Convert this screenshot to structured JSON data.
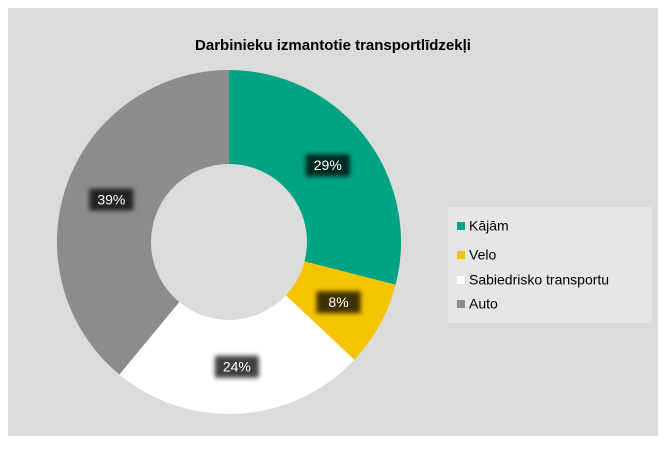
{
  "chart_data": {
    "type": "donut",
    "title": "Darbinieku izmantotie transportlīdzekļi",
    "categories": [
      "Kājām",
      "Velo",
      "Sabiedrisko transportu",
      "Auto"
    ],
    "values": [
      29,
      8,
      24,
      39
    ],
    "value_labels": [
      "29%",
      "8%",
      "24%",
      "39%"
    ],
    "colors": [
      "#00a383",
      "#f5c400",
      "#ffffff",
      "#8c8c8c"
    ],
    "legend": "right"
  }
}
